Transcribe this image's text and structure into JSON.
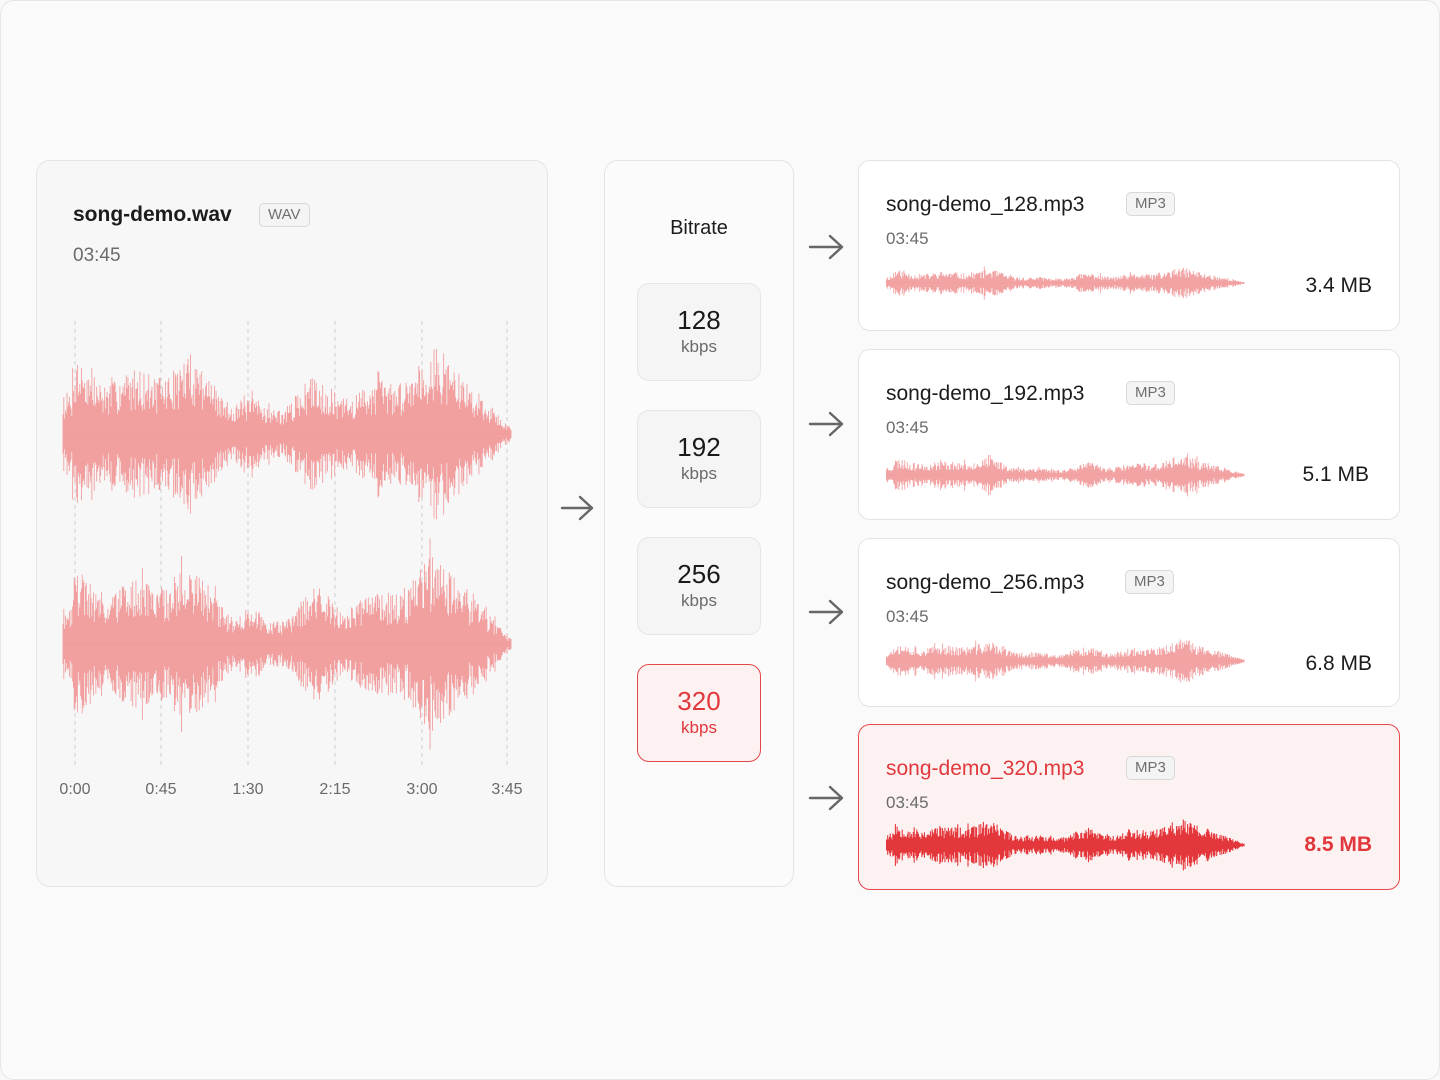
{
  "source": {
    "filename": "song-demo.wav",
    "format": "WAV",
    "duration": "03:45",
    "timeline": [
      "0:00",
      "0:45",
      "1:30",
      "2:15",
      "3:00",
      "3:45"
    ]
  },
  "bitrate": {
    "heading": "Bitrate",
    "options": [
      {
        "value": "128",
        "unit": "kbps",
        "selected": false
      },
      {
        "value": "192",
        "unit": "kbps",
        "selected": false
      },
      {
        "value": "256",
        "unit": "kbps",
        "selected": false
      },
      {
        "value": "320",
        "unit": "kbps",
        "selected": true
      }
    ]
  },
  "outputs": [
    {
      "filename": "song-demo_128.mp3",
      "format": "MP3",
      "duration": "03:45",
      "size": "3.4 MB",
      "selected": false
    },
    {
      "filename": "song-demo_192.mp3",
      "format": "MP3",
      "duration": "03:45",
      "size": "5.1 MB",
      "selected": false
    },
    {
      "filename": "song-demo_256.mp3",
      "format": "MP3",
      "duration": "03:45",
      "size": "6.8 MB",
      "selected": false
    },
    {
      "filename": "song-demo_320.mp3",
      "format": "MP3",
      "duration": "03:45",
      "size": "8.5 MB",
      "selected": true
    }
  ],
  "colors": {
    "accent": "#e0383c",
    "wave_light": "#f19a9b",
    "wave_strong": "#e4373b",
    "arrow": "#666666"
  },
  "icons": {
    "flow_arrow": "arrow-right-icon"
  }
}
